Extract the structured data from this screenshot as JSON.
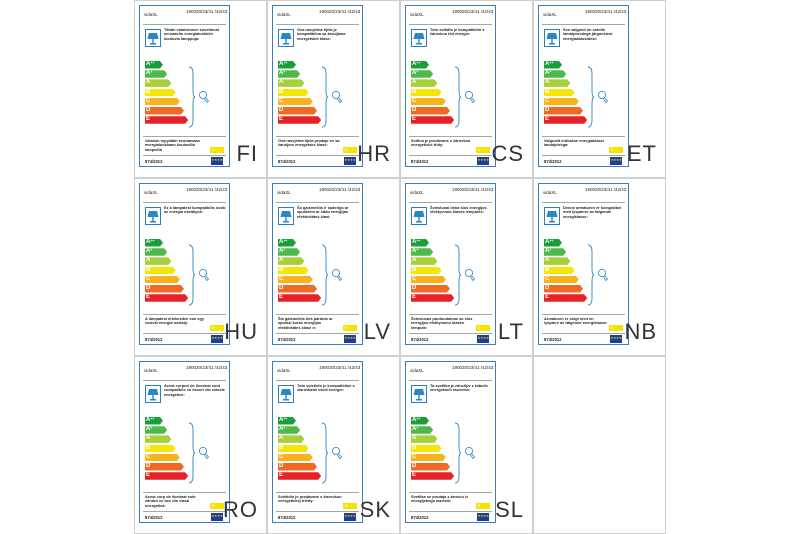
{
  "brand": "vidaXL",
  "reference": "190020/23/41 /42/43",
  "regulation": "874/2012",
  "eu_flag_stars": "★★★★",
  "energy_classes": [
    {
      "class": "A",
      "plus": "++",
      "color": "#17a03a"
    },
    {
      "class": "A",
      "plus": "+",
      "color": "#4fb848"
    },
    {
      "class": "A",
      "plus": "",
      "color": "#a5cf3b"
    },
    {
      "class": "B",
      "plus": "",
      "color": "#f4e60b"
    },
    {
      "class": "C",
      "plus": "",
      "color": "#f7b21c"
    },
    {
      "class": "D",
      "plus": "",
      "color": "#ef6a25"
    },
    {
      "class": "E",
      "plus": "",
      "color": "#e42329"
    }
  ],
  "compatible_class_box": "E",
  "labels": [
    {
      "lang": "FI",
      "intro": "Tähän valaisimeen soveltuvat seuraaviin energialuokkiin kuuluvia lamppuja:",
      "outro": "Valaisin myydään seuraavaan energialuokkaan kuuluvilla lampuilla"
    },
    {
      "lang": "HR",
      "intro": "Ova rasvjetna tijela je kompatibilna sa žaruljama energetskih klase:",
      "outro": "Ova rasvjetna tijela prodaje se sa žaruljom energetske klase:"
    },
    {
      "lang": "CS",
      "intro": "Toto svítidlo je kompatibilní s žárovkou těd energie:",
      "outro": "Svítina je prodávané s žárovkou energetické třídy:"
    },
    {
      "lang": "ET",
      "intro": "See valgusti on sobilik lambipirnidega järgmistest energiaklassidest:",
      "outro": "Valgustit müüakse energiaklassi lambipirniga:"
    },
    {
      "lang": "HU",
      "intro": "Ez a lámpatest kompatibilis izzók az energia osztályok:",
      "outro": "A lámpatest értékesítve van egy izzóval energia osztály:"
    },
    {
      "lang": "LV",
      "intro": "Šo gaismeklis ir saderīgs ar spuldzēm ar šādu enerģijas efektivitātes klasi:",
      "outro": "Šis gaismeklis tiek pārdots ar spuldzi kuras enerģijas efektivitātes klase ir:"
    },
    {
      "lang": "LT",
      "intro": "Šviestuvai tinka šios energijos efektyvumo klasės lemputės:",
      "outro": "Šviestuvas parduodamas su šios energijos efektyvumo klasės lempute:"
    },
    {
      "lang": "NB",
      "intro": "Denne armaturen er kompatibel med lyspærer av følgende energiklasse:",
      "outro": "Armaturen er solgt med en lyspære av følgende energiklasse:"
    },
    {
      "lang": "RO",
      "intro": "Acest corpuri de iluminat sunt compatibile cu becuri din clasele energetice:",
      "outro": "Acest corp de iluminat este vândut cu bec din clasa energetică:"
    },
    {
      "lang": "SK",
      "intro": "Toto svietidlo je kompatibilné s žiarovkami triedi energie:",
      "outro": "Svietidlo je predávané s žiarovkou energetickej triedy:"
    },
    {
      "lang": "SL",
      "intro": "Ta svetilka je združljiv z žabulic energetskih razredov:",
      "outro": "Svetilka se prodaja z žarnico iz energijskega razreda:"
    }
  ]
}
